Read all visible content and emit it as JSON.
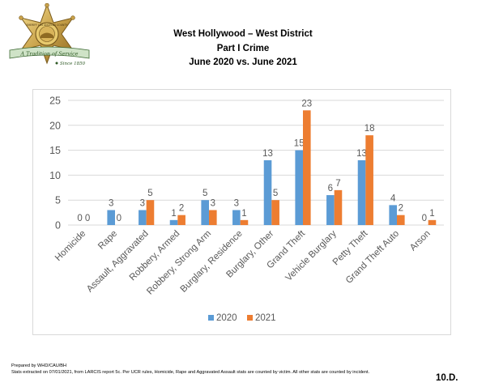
{
  "header": {
    "logo": {
      "icon": "sheriff-star-logo",
      "motto": "A Tradition of Service",
      "since": "Since 1850",
      "seal_text": "SHERIFF LOS ANGELES COUNTY"
    },
    "title_lines": [
      "West Hollywood – West District",
      "Part I Crime",
      "June 2020 vs. June 2021"
    ]
  },
  "colors": {
    "series_2020": "#5b9bd5",
    "series_2021": "#ed7d31",
    "gridline": "#d9d9d9",
    "axis_text": "#595959"
  },
  "chart_data": {
    "type": "bar",
    "categories": [
      "Homicide",
      "Rape",
      "Assault, Aggravated",
      "Robbery, Armed",
      "Robbery, Strong Arm",
      "Burglary, Residence",
      "Burglary, Other",
      "Grand Theft",
      "Vehicle Burglary",
      "Petty Theft",
      "Grand Theft Auto",
      "Arson"
    ],
    "series": [
      {
        "name": "2020",
        "values": [
          0,
          3,
          3,
          1,
          5,
          3,
          13,
          15,
          6,
          13,
          4,
          0
        ]
      },
      {
        "name": "2021",
        "values": [
          0,
          0,
          5,
          2,
          3,
          1,
          5,
          23,
          7,
          18,
          2,
          1
        ]
      }
    ],
    "ylim": [
      0,
      25
    ],
    "yticks": [
      0,
      5,
      10,
      15,
      20,
      25
    ],
    "grid": true,
    "data_labels": true,
    "legend_position": "bottom"
  },
  "footer": {
    "prepared_by": "Prepared by WHD/CAU/BH",
    "stats_note": "Stats extracted on 07/01/2021, from LARCIS report 5c. Per UCR rules, Homicide, Rape and Aggravated Assault stats are counted by victim. All other stats are counted by incident."
  },
  "page_label": "10.D."
}
